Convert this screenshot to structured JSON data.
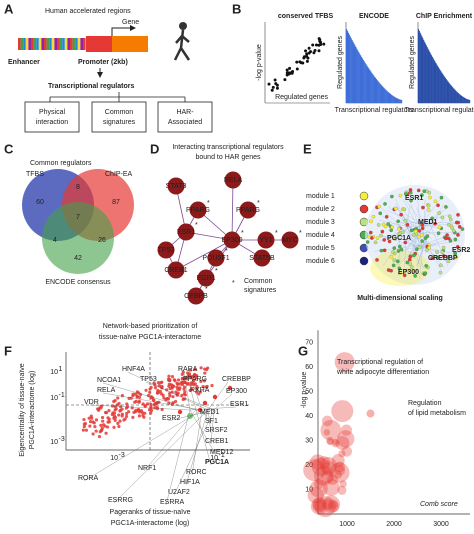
{
  "figure": {
    "a": {
      "label": "A",
      "title": "Human accelerated regions",
      "gene": "Gene",
      "enhancer": "Enhancer",
      "promoter": "Promoter (2kb)",
      "regulators": "Transcriptional regulators",
      "boxes": [
        [
          "Physical",
          "interaction"
        ],
        [
          "Common",
          "signatures"
        ],
        [
          "HAR-",
          "Associated"
        ]
      ]
    },
    "b": {
      "label": "B",
      "plots": [
        {
          "title": "conserved TFBS",
          "ylabel": "-log p-value",
          "xlabel": "Regulated genes"
        },
        {
          "title": "ENCODE",
          "ylabel": "Regulated genes",
          "xlabel": "Transcriptional regulators"
        },
        {
          "title": "ChIP Enrichment",
          "ylabel": "Regulated genes",
          "xlabel": "Transcriptional regulators"
        }
      ]
    },
    "c": {
      "label": "C",
      "title": "Common regulators",
      "sets": [
        "TFBS",
        "ChIP-EA",
        "ENCODE consensus"
      ],
      "regions": [
        60,
        8,
        87,
        7,
        4,
        26,
        42
      ]
    },
    "d": {
      "label": "D",
      "title": [
        "Interacting transcriptional regulators",
        "bound to HAR genes"
      ],
      "nodes": [
        "STAT3",
        "RELA",
        "PPARG",
        "PPARG",
        "ESR1",
        "EP300",
        "TP53",
        "CREB1",
        "YY1",
        "MYC",
        "STAT5B",
        "POU5F1",
        "EGR1",
        "CEBPB"
      ],
      "legend": [
        "Common",
        "signatures"
      ]
    },
    "e": {
      "label": "E",
      "modules": [
        "module 1",
        "module 2",
        "module 3",
        "module 4",
        "module 5",
        "module 6"
      ],
      "genes": [
        "ESR1",
        "MED1",
        "PGC1A",
        "CREBBP",
        "ESR2",
        "EP300"
      ],
      "caption": "Multi-dimensional scaling"
    },
    "f": {
      "label": "F",
      "title": [
        "Network-based prioritization of",
        "tissue-naïve PGC1A-interactome"
      ],
      "ylabel": [
        "Eigencentrality of tissue-naïve",
        "PGC1A-interactome (log)"
      ],
      "xlabel": [
        "Pageranks of tissue-naïve",
        "PGC1A-interactome (log)"
      ],
      "yticks": [
        {
          "base": "10",
          "exp": "1"
        },
        {
          "base": "10",
          "exp": "-1"
        },
        {
          "base": "10",
          "exp": "-3"
        }
      ],
      "xticks": [
        {
          "base": "10",
          "exp": "-3"
        },
        {
          "base": "10",
          "exp": "-1"
        }
      ],
      "genes": [
        "VDR",
        "NCOA1",
        "RELA",
        "HNF4A",
        "TP53",
        "RARA",
        "PPARG",
        "RXRA",
        "CREBBP",
        "EP300",
        "ESR1",
        "MED1",
        "SF1",
        "SRSF2",
        "CREB1",
        "MED12",
        "PGC1A",
        "RORC",
        "HIF1A",
        "U2AF2",
        "ESRRA",
        "NRF1",
        "RORA",
        "ESRRG",
        "ESR2"
      ]
    },
    "g": {
      "label": "G",
      "ylabel": "-log p-value",
      "xlabel": "Comb score",
      "yticks": [
        10,
        20,
        30,
        40,
        50,
        60,
        70
      ],
      "xticks": [
        1000,
        2000,
        3000
      ],
      "annotations": [
        [
          "Transcriptional regulation of",
          "white adipocyte differentiation"
        ],
        [
          "Regulation",
          "of lipid metabolism"
        ]
      ]
    }
  }
}
